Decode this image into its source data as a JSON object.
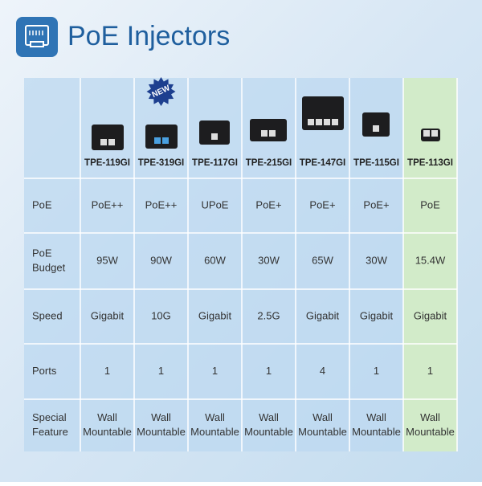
{
  "header": {
    "title": "PoE Injectors"
  },
  "badge": "NEW",
  "table": {
    "products": [
      "TPE-119GI",
      "TPE-319GI",
      "TPE-117GI",
      "TPE-215GI",
      "TPE-147GI",
      "TPE-115GI",
      "TPE-113GI"
    ],
    "rows": [
      {
        "label": [
          "PoE"
        ],
        "values": [
          [
            "PoE++"
          ],
          [
            "PoE++"
          ],
          [
            "UPoE"
          ],
          [
            "PoE+"
          ],
          [
            "PoE+"
          ],
          [
            "PoE+"
          ],
          [
            "PoE"
          ]
        ]
      },
      {
        "label": [
          "PoE",
          "Budget"
        ],
        "values": [
          [
            "95W"
          ],
          [
            "90W"
          ],
          [
            "60W"
          ],
          [
            "30W"
          ],
          [
            "65W"
          ],
          [
            "30W"
          ],
          [
            "15.4W"
          ]
        ]
      },
      {
        "label": [
          "Speed"
        ],
        "values": [
          [
            "Gigabit"
          ],
          [
            "10G"
          ],
          [
            "Gigabit"
          ],
          [
            "2.5G"
          ],
          [
            "Gigabit"
          ],
          [
            "Gigabit"
          ],
          [
            "Gigabit"
          ]
        ]
      },
      {
        "label": [
          "Ports"
        ],
        "values": [
          [
            "1"
          ],
          [
            "1"
          ],
          [
            "1"
          ],
          [
            "1"
          ],
          [
            "4"
          ],
          [
            "1"
          ],
          [
            "1"
          ]
        ]
      },
      {
        "label": [
          "Special",
          "Feature"
        ],
        "values": [
          [
            "Wall",
            "Mountable"
          ],
          [
            "Wall",
            "Mountable"
          ],
          [
            "Wall",
            "Mountable"
          ],
          [
            "Wall",
            "Mountable"
          ],
          [
            "Wall",
            "Mountable"
          ],
          [
            "Wall",
            "Mountable"
          ],
          [
            "Wall",
            "Mountable"
          ]
        ]
      }
    ]
  }
}
